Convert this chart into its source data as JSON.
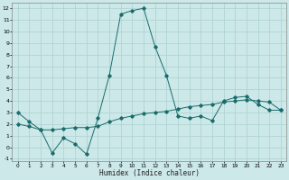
{
  "xlabel": "Humidex (Indice chaleur)",
  "bg_color": "#cce8e8",
  "grid_color": "#aad0d0",
  "line_color": "#1a6b6b",
  "xlim": [
    -0.5,
    23.5
  ],
  "ylim": [
    -1.2,
    12.5
  ],
  "xticks": [
    0,
    1,
    2,
    3,
    4,
    5,
    6,
    7,
    8,
    9,
    10,
    11,
    12,
    13,
    14,
    15,
    16,
    17,
    18,
    19,
    20,
    21,
    22,
    23
  ],
  "yticks": [
    -1,
    0,
    1,
    2,
    3,
    4,
    5,
    6,
    7,
    8,
    9,
    10,
    11,
    12
  ],
  "line1_x": [
    0,
    1,
    2,
    3,
    4,
    5,
    6,
    7,
    8,
    9,
    10,
    11,
    12,
    13,
    14,
    15,
    16,
    17,
    18,
    19,
    20,
    21,
    22,
    23
  ],
  "line1_y": [
    3.0,
    2.2,
    1.5,
    -0.5,
    0.8,
    0.3,
    -0.6,
    2.5,
    6.2,
    11.5,
    11.8,
    12.0,
    8.7,
    6.2,
    2.7,
    2.5,
    2.7,
    2.3,
    4.0,
    4.3,
    4.4,
    3.7,
    3.2,
    3.2
  ],
  "line2_x": [
    0,
    1,
    2,
    3,
    4,
    5,
    6,
    7,
    8,
    9,
    10,
    11,
    12,
    13,
    14,
    15,
    16,
    17,
    18,
    19,
    20,
    21,
    22,
    23
  ],
  "line2_y": [
    2.0,
    1.8,
    1.5,
    1.5,
    1.6,
    1.7,
    1.7,
    1.8,
    2.2,
    2.5,
    2.7,
    2.9,
    3.0,
    3.1,
    3.3,
    3.5,
    3.6,
    3.7,
    3.9,
    4.0,
    4.1,
    4.0,
    3.9,
    3.2
  ]
}
